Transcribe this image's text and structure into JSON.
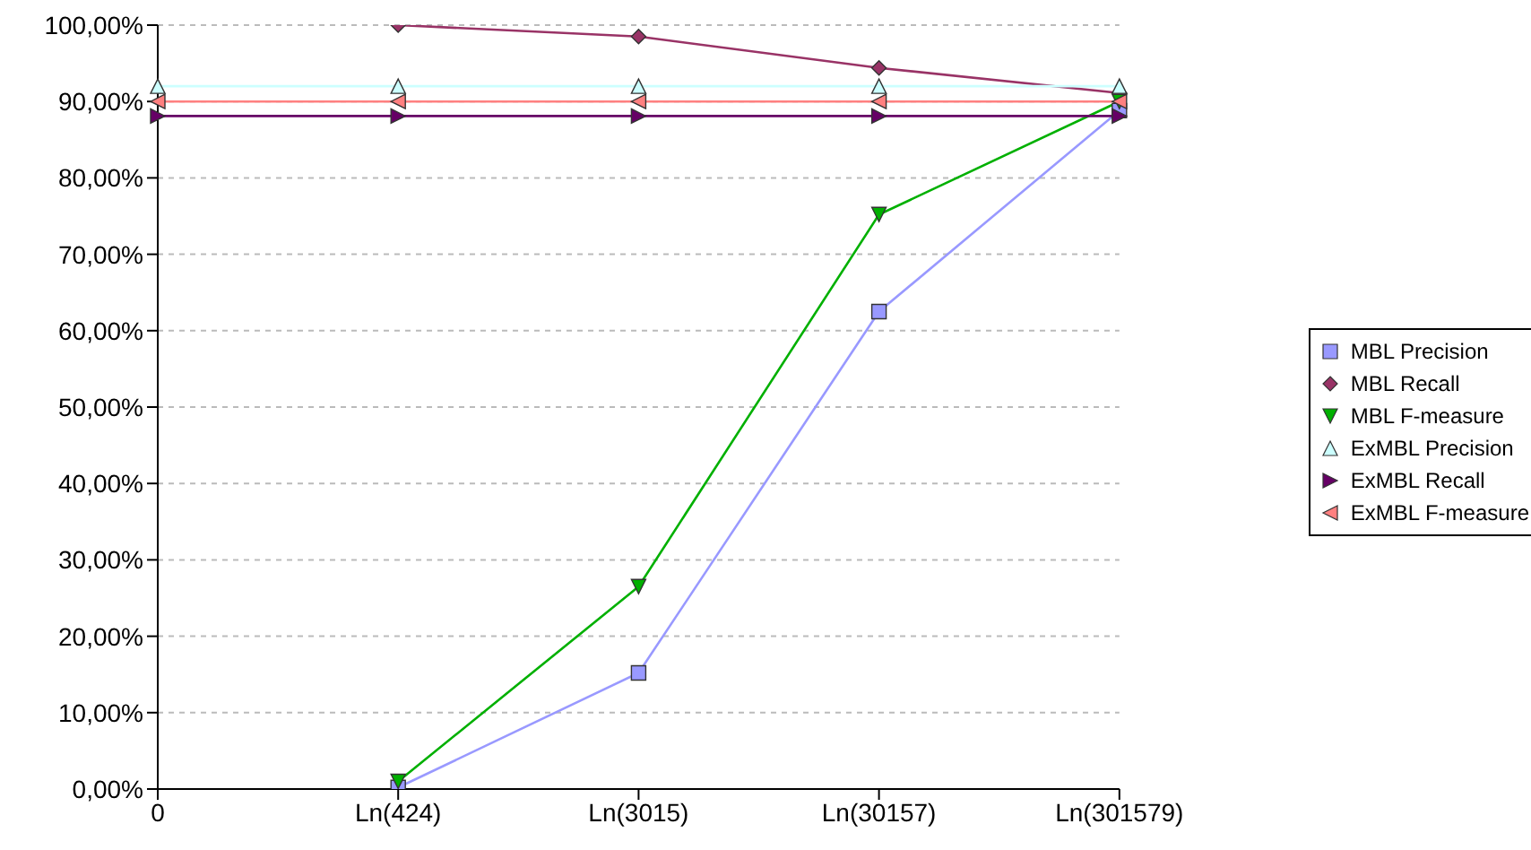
{
  "chart_data": {
    "type": "line",
    "categories": [
      "0",
      "Ln(424)",
      "Ln(3015)",
      "Ln(30157)",
      "Ln(301579)"
    ],
    "series": [
      {
        "name": "MBL Precision",
        "color": "#9999ff",
        "marker": "square",
        "values": [
          null,
          0.2,
          15.2,
          62.5,
          88.8
        ]
      },
      {
        "name": "MBL Recall",
        "color": "#993366",
        "marker": "diamond",
        "values": [
          null,
          100,
          98.5,
          94.4,
          91.1
        ]
      },
      {
        "name": "MBL F-measure",
        "color": "#00b000",
        "marker": "triangle-down",
        "values": [
          null,
          1,
          26.5,
          75.2,
          90
        ]
      },
      {
        "name": "ExMBL Precision",
        "color": "#ccffff",
        "marker": "triangle",
        "values": [
          92,
          92,
          92,
          92,
          92
        ]
      },
      {
        "name": "ExMBL Recall",
        "color": "#660066",
        "marker": "triangle-right",
        "values": [
          88.1,
          88.1,
          88.1,
          88.1,
          88.1
        ]
      },
      {
        "name": "ExMBL F-measure",
        "color": "#ff8080",
        "marker": "triangle-left",
        "values": [
          90,
          90,
          90,
          90,
          90
        ]
      }
    ],
    "ylim": [
      0,
      100
    ],
    "yticks": [
      {
        "value": 0,
        "label": "0,00%"
      },
      {
        "value": 10,
        "label": "10,00%"
      },
      {
        "value": 20,
        "label": "20,00%"
      },
      {
        "value": 30,
        "label": "30,00%"
      },
      {
        "value": 40,
        "label": "40,00%"
      },
      {
        "value": 50,
        "label": "50,00%"
      },
      {
        "value": 60,
        "label": "60,00%"
      },
      {
        "value": 70,
        "label": "70,00%"
      },
      {
        "value": 80,
        "label": "80,00%"
      },
      {
        "value": 90,
        "label": "90,00%"
      },
      {
        "value": 100,
        "label": "100,00%"
      }
    ],
    "grid": "y",
    "legend": "right",
    "line_style": "solid"
  }
}
